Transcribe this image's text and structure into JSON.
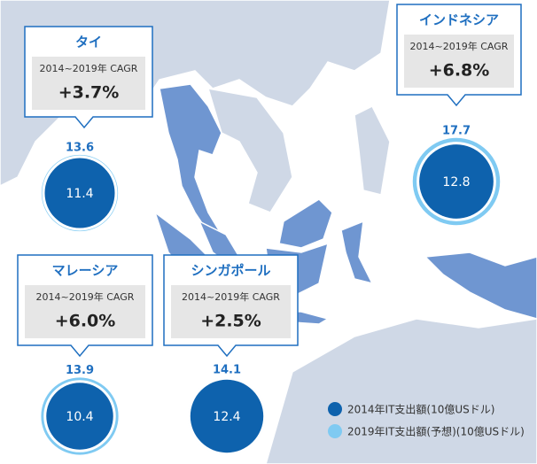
{
  "countries": [
    {
      "name": "タイ",
      "cagr_label": "2014~2019年 CAGR",
      "cagr": "+3.7%",
      "value_2014": 11.4,
      "value_2019": 13.6
    },
    {
      "name": "インドネシア",
      "cagr_label": "2014~2019年 CAGR",
      "cagr": "+6.8%",
      "value_2014": 12.8,
      "value_2019": 17.7
    },
    {
      "name": "マレーシア",
      "cagr_label": "2014~2019年 CAGR",
      "cagr": "+6.0%",
      "value_2014": 10.4,
      "value_2019": 13.9
    },
    {
      "name": "シンガポール",
      "cagr_label": "2014~2019年 CAGR",
      "cagr": "+2.5%",
      "value_2014": 12.4,
      "value_2019": 14.1
    }
  ],
  "legend": {
    "item_2014": "2014年IT支出額(10億USドル)",
    "item_2019": "2019年IT支出額(予想)(10億USドル)"
  }
}
